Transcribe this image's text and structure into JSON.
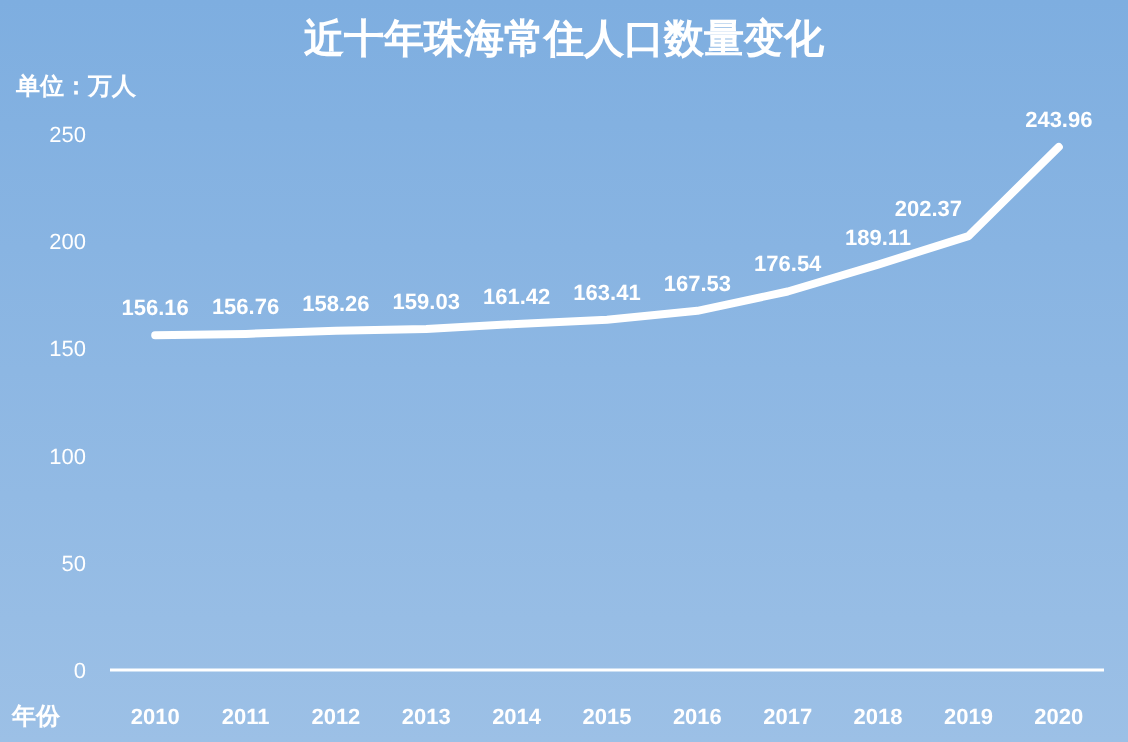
{
  "chart_data": {
    "type": "line",
    "title": "近十年珠海常住人口数量变化",
    "ylabel": "单位：万人",
    "xlabel": "年份",
    "categories": [
      "2010",
      "2011",
      "2012",
      "2013",
      "2014",
      "2015",
      "2016",
      "2017",
      "2018",
      "2019",
      "2020"
    ],
    "series": [
      {
        "color": "#ffffff",
        "values": [
          156.16,
          156.76,
          158.26,
          159.03,
          161.42,
          163.41,
          167.53,
          176.54,
          189.11,
          202.37,
          243.96
        ]
      }
    ],
    "ylim": [
      0,
      250
    ],
    "yticks": [
      0,
      50,
      100,
      150,
      200,
      250
    ],
    "data_labels": true,
    "marker": "none",
    "line_style": "solid",
    "grid": false
  }
}
